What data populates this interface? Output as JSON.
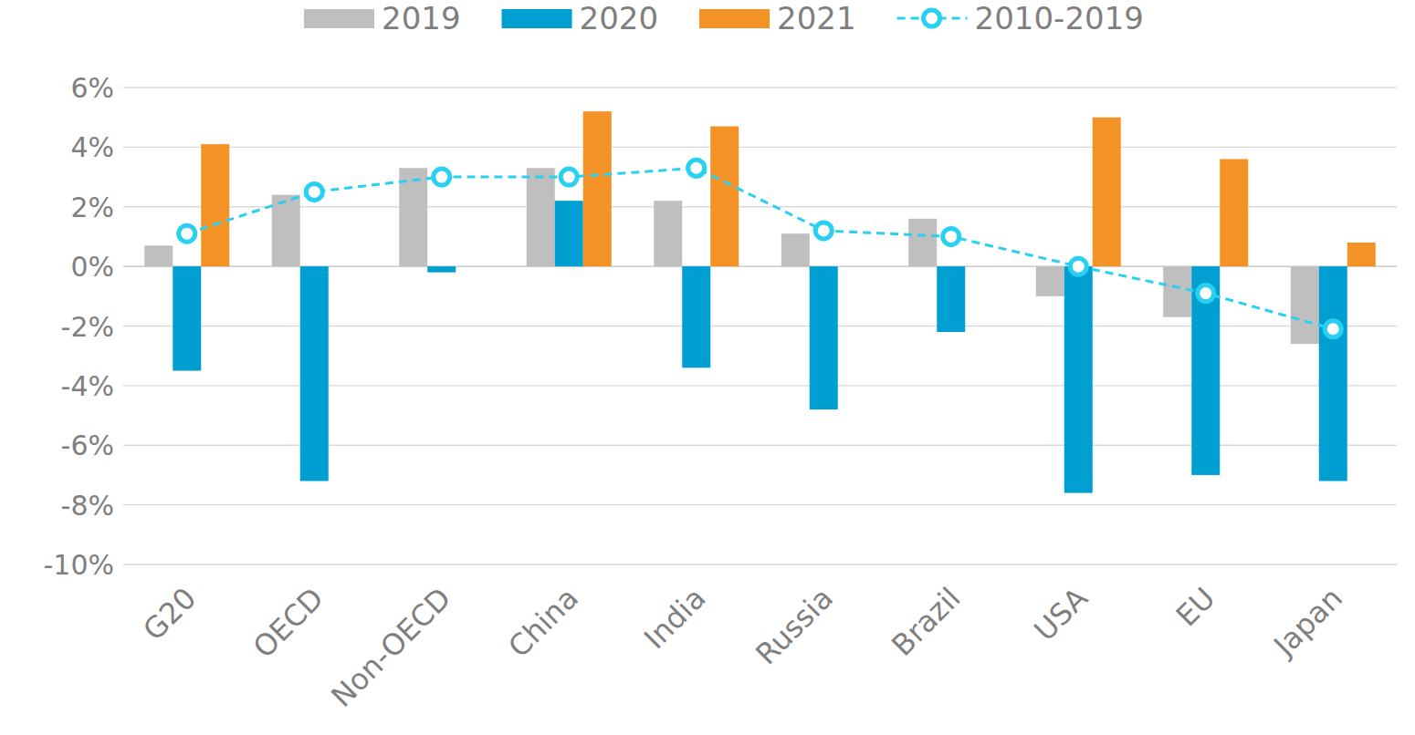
{
  "chart_data": {
    "type": "bar",
    "categories": [
      "G20",
      "OECD",
      "Non-OECD",
      "China",
      "India",
      "Russia",
      "Brazil",
      "USA",
      "EU",
      "Japan"
    ],
    "series": [
      {
        "name": "2019",
        "type": "bar",
        "color": "#bfbfbf",
        "values": [
          0.7,
          2.4,
          3.3,
          3.3,
          2.2,
          1.1,
          1.6,
          -1.0,
          -1.7,
          -2.6
        ]
      },
      {
        "name": "2020",
        "type": "bar",
        "color": "#009fd1",
        "values": [
          -3.5,
          -7.2,
          -0.2,
          2.2,
          -3.4,
          -4.8,
          -2.2,
          -7.6,
          -7.0,
          -7.2
        ]
      },
      {
        "name": "2021",
        "type": "bar",
        "color": "#f39325",
        "values": [
          4.1,
          null,
          null,
          5.2,
          4.7,
          null,
          null,
          5.0,
          3.6,
          0.8
        ]
      },
      {
        "name": "2010-2019",
        "type": "line",
        "color": "#29d0f2",
        "marker": "circle",
        "line_style": "dashed",
        "values": [
          1.1,
          2.5,
          3.0,
          3.0,
          3.3,
          1.2,
          1.0,
          0.0,
          -0.9,
          -2.1
        ]
      }
    ],
    "ylim": [
      -10,
      6
    ],
    "yticks": [
      {
        "value": 6,
        "label": "6%"
      },
      {
        "value": 4,
        "label": "4%"
      },
      {
        "value": 2,
        "label": "2%"
      },
      {
        "value": 0,
        "label": "0%"
      },
      {
        "value": -2,
        "label": "-2%"
      },
      {
        "value": -4,
        "label": "-4%"
      },
      {
        "value": -6,
        "label": "-6%"
      },
      {
        "value": -8,
        "label": "-8%"
      },
      {
        "value": -10,
        "label": "-10%"
      }
    ],
    "grid": true,
    "legend": "top"
  }
}
